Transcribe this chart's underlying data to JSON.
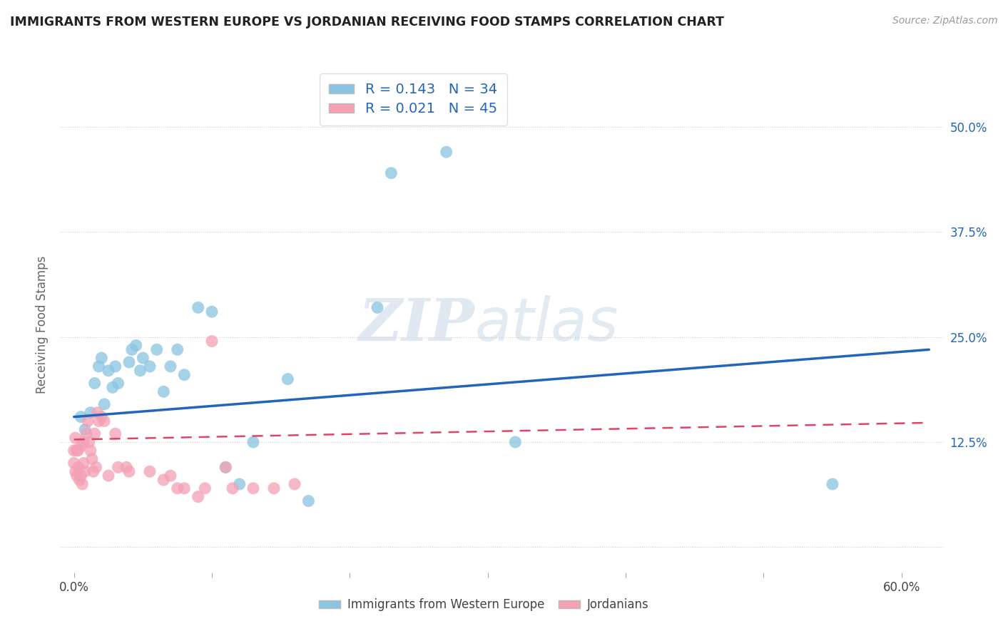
{
  "title": "IMMIGRANTS FROM WESTERN EUROPE VS JORDANIAN RECEIVING FOOD STAMPS CORRELATION CHART",
  "source": "Source: ZipAtlas.com",
  "ylabel": "Receiving Food Stamps",
  "x_ticks": [
    0.0,
    0.1,
    0.2,
    0.3,
    0.4,
    0.5,
    0.6
  ],
  "x_tick_labels": [
    "0.0%",
    "",
    "",
    "",
    "",
    "",
    "60.0%"
  ],
  "y_ticks": [
    0.0,
    0.125,
    0.25,
    0.375,
    0.5
  ],
  "y_tick_labels": [
    "",
    "12.5%",
    "25.0%",
    "37.5%",
    "50.0%"
  ],
  "xlim": [
    -0.01,
    0.63
  ],
  "ylim": [
    -0.03,
    0.56
  ],
  "grid_color": "#cccccc",
  "background_color": "#ffffff",
  "watermark_zip": "ZIP",
  "watermark_atlas": "atlas",
  "blue_color": "#89c4e1",
  "pink_color": "#f4a0b5",
  "blue_line_color": "#2266bb",
  "pink_line_color": "#dd4466",
  "R_blue": 0.143,
  "N_blue": 34,
  "R_pink": 0.021,
  "N_pink": 45,
  "blue_points_x": [
    0.005,
    0.008,
    0.012,
    0.015,
    0.018,
    0.02,
    0.022,
    0.025,
    0.028,
    0.03,
    0.032,
    0.04,
    0.042,
    0.045,
    0.048,
    0.05,
    0.055,
    0.06,
    0.065,
    0.07,
    0.075,
    0.08,
    0.09,
    0.1,
    0.11,
    0.12,
    0.13,
    0.155,
    0.17,
    0.22,
    0.23,
    0.27,
    0.32,
    0.55
  ],
  "blue_points_y": [
    0.155,
    0.14,
    0.16,
    0.195,
    0.215,
    0.225,
    0.17,
    0.21,
    0.19,
    0.215,
    0.195,
    0.22,
    0.235,
    0.24,
    0.21,
    0.225,
    0.215,
    0.235,
    0.185,
    0.215,
    0.235,
    0.205,
    0.285,
    0.28,
    0.095,
    0.075,
    0.125,
    0.2,
    0.055,
    0.285,
    0.445,
    0.47,
    0.125,
    0.075
  ],
  "pink_points_x": [
    0.0,
    0.0,
    0.001,
    0.001,
    0.002,
    0.002,
    0.003,
    0.003,
    0.004,
    0.005,
    0.005,
    0.006,
    0.007,
    0.007,
    0.008,
    0.009,
    0.01,
    0.011,
    0.012,
    0.013,
    0.014,
    0.015,
    0.016,
    0.017,
    0.018,
    0.02,
    0.022,
    0.025,
    0.03,
    0.032,
    0.038,
    0.04,
    0.055,
    0.065,
    0.07,
    0.075,
    0.08,
    0.09,
    0.095,
    0.1,
    0.11,
    0.115,
    0.13,
    0.145,
    0.16
  ],
  "pink_points_y": [
    0.115,
    0.1,
    0.13,
    0.09,
    0.085,
    0.115,
    0.095,
    0.115,
    0.08,
    0.12,
    0.085,
    0.075,
    0.125,
    0.1,
    0.09,
    0.135,
    0.15,
    0.125,
    0.115,
    0.105,
    0.09,
    0.135,
    0.095,
    0.16,
    0.15,
    0.155,
    0.15,
    0.085,
    0.135,
    0.095,
    0.095,
    0.09,
    0.09,
    0.08,
    0.085,
    0.07,
    0.07,
    0.06,
    0.07,
    0.245,
    0.095,
    0.07,
    0.07,
    0.07,
    0.075
  ],
  "blue_line_x0": 0.0,
  "blue_line_y0": 0.155,
  "blue_line_x1": 0.62,
  "blue_line_y1": 0.235,
  "pink_line_x0": 0.0,
  "pink_line_y0": 0.128,
  "pink_line_x1": 0.62,
  "pink_line_y1": 0.148
}
